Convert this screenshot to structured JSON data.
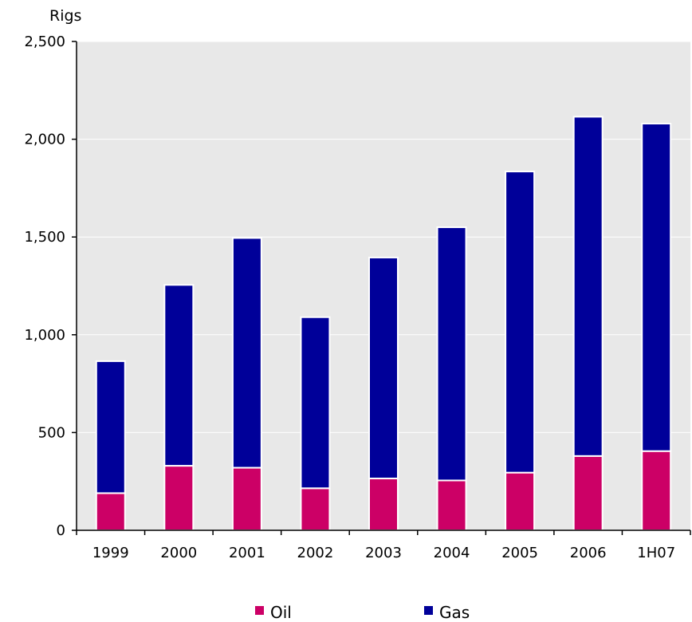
{
  "chart_data": {
    "type": "bar",
    "stacked": true,
    "title": "",
    "xlabel": "",
    "ylabel": "Rigs",
    "ylim": [
      0,
      2500
    ],
    "yticks": [
      0,
      500,
      1000,
      1500,
      2000,
      2500
    ],
    "ytick_labels": [
      "0",
      "500",
      "1,000",
      "1,500",
      "2,000",
      "2,500"
    ],
    "grid": true,
    "legend_position": "bottom",
    "categories": [
      "1999",
      "2000",
      "2001",
      "2002",
      "2003",
      "2004",
      "2005",
      "2006",
      "1H07"
    ],
    "series": [
      {
        "name": "Oil",
        "color": "#cc0066",
        "values": [
          190,
          330,
          320,
          215,
          265,
          255,
          295,
          380,
          405
        ]
      },
      {
        "name": "Gas",
        "color": "#000099",
        "values": [
          675,
          925,
          1175,
          875,
          1130,
          1295,
          1540,
          1735,
          1675
        ]
      }
    ],
    "plot_background": "#e8e8e8",
    "grid_color": "#ffffff"
  }
}
